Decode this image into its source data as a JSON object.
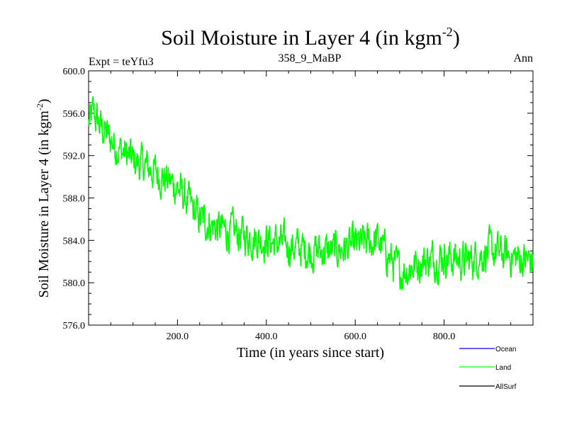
{
  "chart_data": {
    "type": "line",
    "title": "Soil Moisture in Layer 4 (in kgm",
    "title_sup": "-2",
    "title_close": ")",
    "subtitle_left": "Expt = teYfu3",
    "subtitle_center": "358_9_MaBP",
    "subtitle_right": "Ann",
    "xlabel": "Time (in years since start)",
    "ylabel": "Soil Moisture in Layer 4 (in kgm",
    "ylabel_sup": "-2",
    "ylabel_close": ")",
    "xlim": [
      0,
      1000
    ],
    "ylim": [
      576,
      600
    ],
    "xticks": [
      200,
      400,
      600,
      800
    ],
    "xtick_labels": [
      "200.0",
      "400.0",
      "600.0",
      "800.0"
    ],
    "yticks": [
      576,
      580,
      584,
      588,
      592,
      596,
      600
    ],
    "ytick_labels": [
      "576.0",
      "580.0",
      "584.0",
      "588.0",
      "592.0",
      "596.0",
      "600.0"
    ],
    "series": [
      {
        "name": "Land",
        "color": "#00ff00",
        "trend_x": [
          0,
          10,
          30,
          60,
          100,
          150,
          200,
          250,
          300,
          350,
          400,
          450,
          500,
          550,
          600,
          650,
          700,
          750,
          800,
          850,
          900,
          950,
          1000
        ],
        "trend_y": [
          595.0,
          596.0,
          594.5,
          593.0,
          591.5,
          590.5,
          589.0,
          586.0,
          585.0,
          584.5,
          584.0,
          583.5,
          583.0,
          583.0,
          583.5,
          584.0,
          581.0,
          582.0,
          582.5,
          582.0,
          583.0,
          582.5,
          582.0
        ],
        "noise_amplitude": 1.6,
        "n_points": 1000
      },
      {
        "name": "Ocean",
        "color": "#0000ff"
      },
      {
        "name": "AllSurf",
        "color": "#000000"
      }
    ],
    "legend": {
      "position": "bottom-right",
      "entries": [
        {
          "label": "Ocean",
          "color": "#0000ff"
        },
        {
          "label": "Land",
          "color": "#00ff00"
        },
        {
          "label": "AllSurf",
          "color": "#000000"
        }
      ]
    }
  }
}
